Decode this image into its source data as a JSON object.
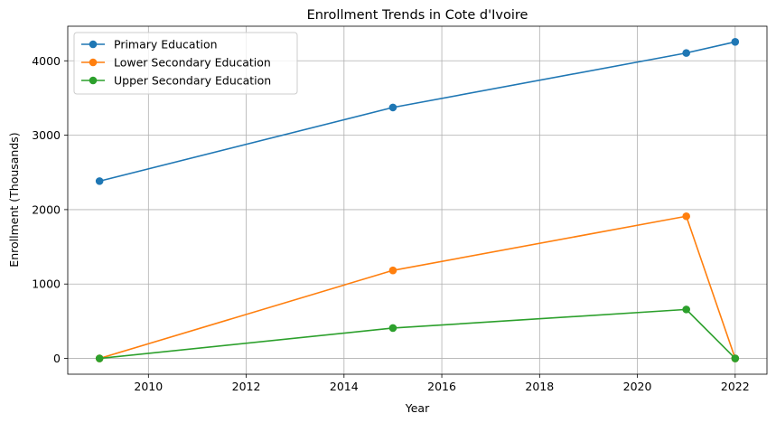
{
  "chart_data": {
    "type": "line",
    "title": "Enrollment Trends in Cote d'Ivoire",
    "xlabel": "Year",
    "ylabel": "Enrollment (Thousands)",
    "xlim": [
      2008.35,
      2022.65
    ],
    "ylim": [
      -212,
      4465
    ],
    "xticks": [
      2010,
      2012,
      2014,
      2016,
      2018,
      2020,
      2022
    ],
    "yticks": [
      0,
      1000,
      2000,
      3000,
      4000
    ],
    "grid": true,
    "legend_position": "top-left",
    "series": [
      {
        "name": "Primary Education",
        "color": "#1f77b4",
        "x": [
          2009,
          2015,
          2021,
          2022
        ],
        "y": [
          2383,
          3373,
          4105,
          4255
        ]
      },
      {
        "name": "Lower Secondary Education",
        "color": "#ff7f0e",
        "x": [
          2009,
          2015,
          2021,
          2022
        ],
        "y": [
          0,
          1183,
          1911,
          0
        ]
      },
      {
        "name": "Upper Secondary Education",
        "color": "#2ca02c",
        "x": [
          2009,
          2015,
          2021,
          2022
        ],
        "y": [
          0,
          408,
          658,
          0
        ]
      }
    ]
  }
}
